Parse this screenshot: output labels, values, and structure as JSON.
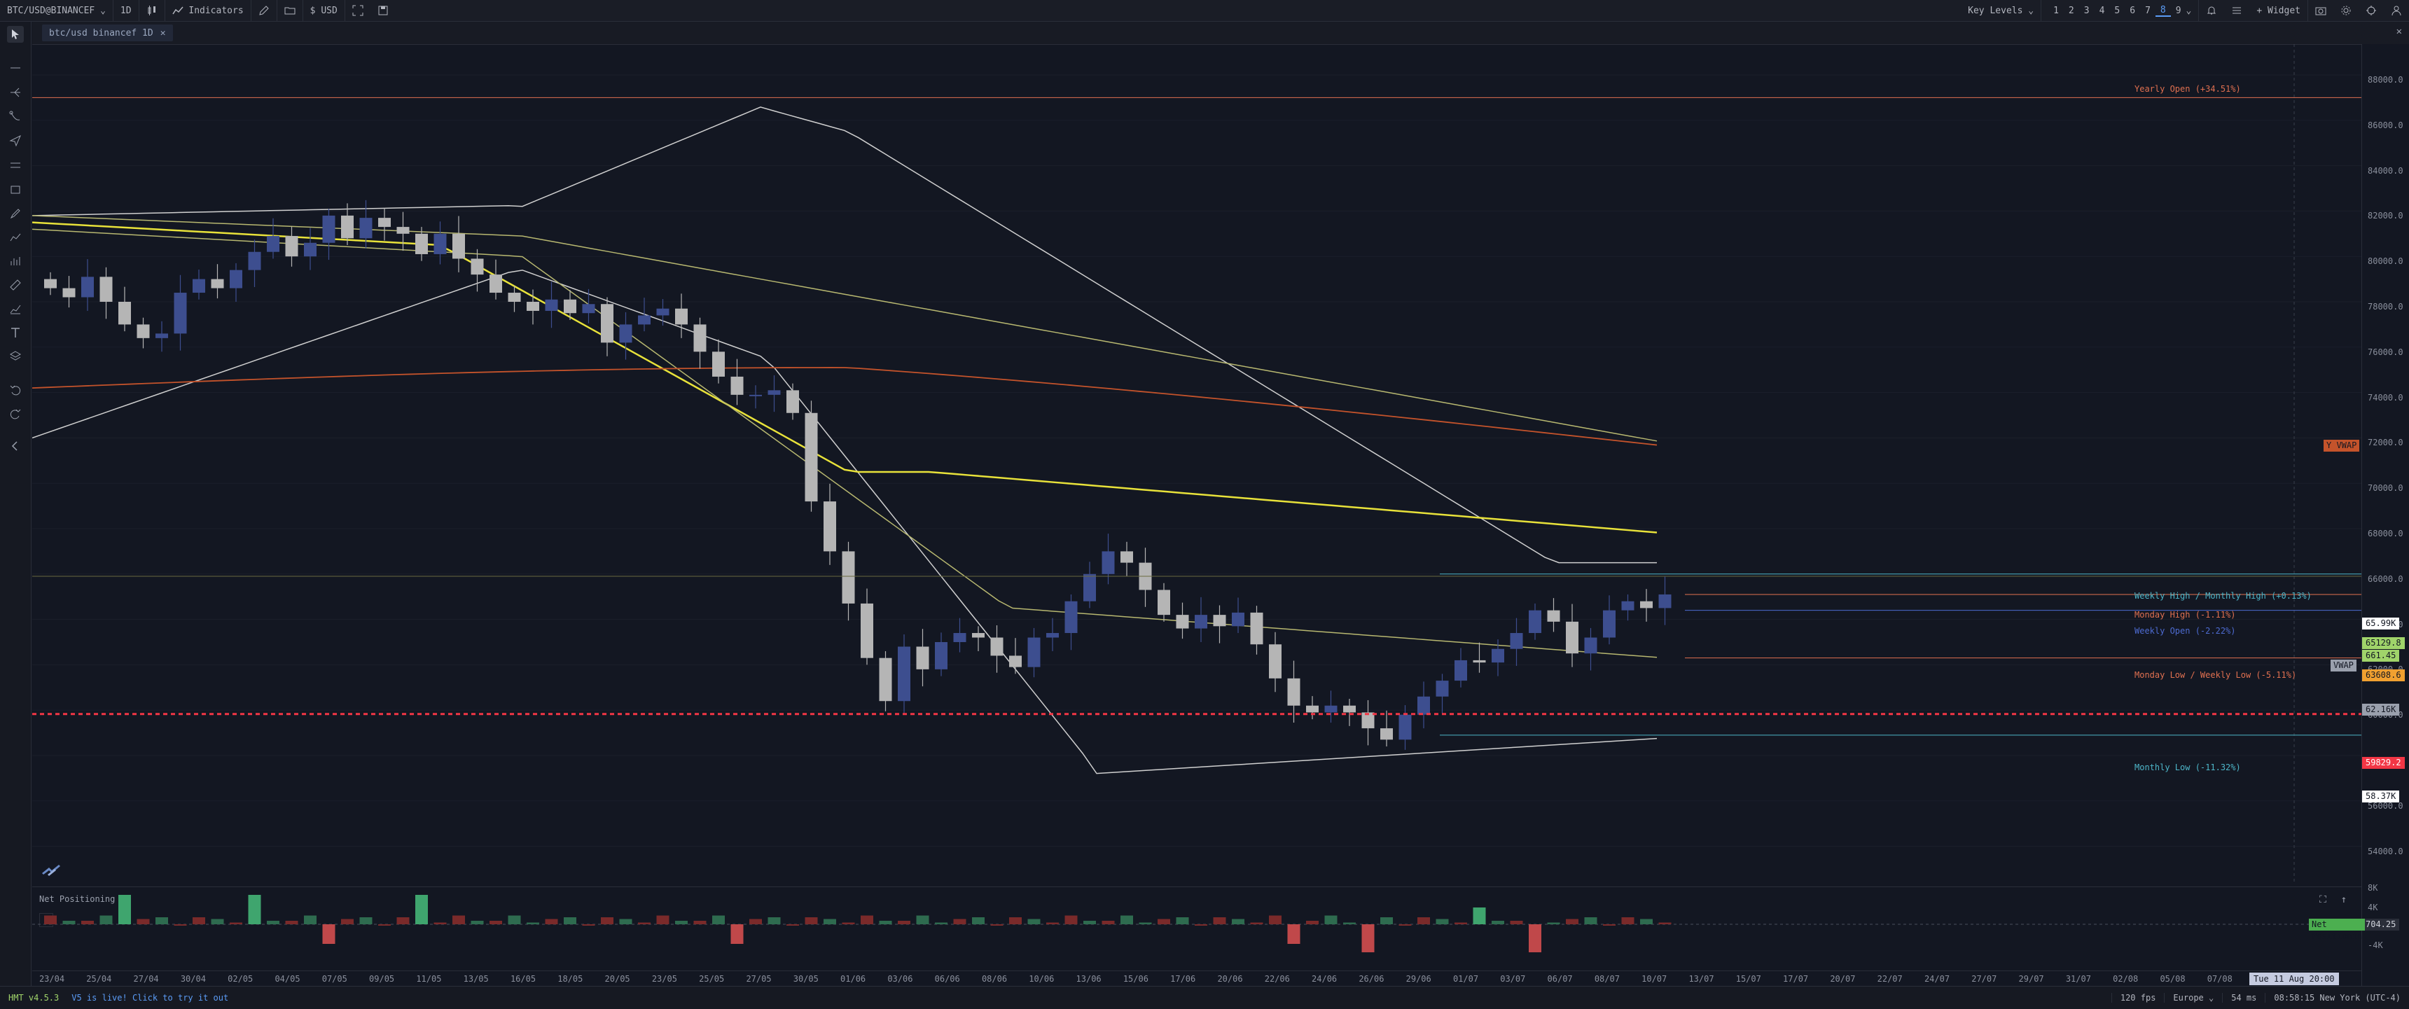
{
  "topbar": {
    "symbol": "BTC/USD@BINANCEF",
    "interval": "1D",
    "indicators_label": "Indicators",
    "currency": "USD",
    "key_levels_label": "Key Levels",
    "layout_numbers": [
      "1",
      "2",
      "3",
      "4",
      "5",
      "6",
      "7",
      "8",
      "9"
    ],
    "active_layout": "8",
    "widget_label": "Widget"
  },
  "tab": {
    "label": "btc/usd binancef 1D"
  },
  "price_axis": [
    "88000.0",
    "86000.0",
    "84000.0",
    "82000.0",
    "80000.0",
    "78000.0",
    "76000.0",
    "74000.0",
    "72000.0",
    "70000.0",
    "68000.0",
    "66000.0",
    "64000.0",
    "62000.0",
    "60000.0",
    "58000.0",
    "56000.0",
    "54000.0"
  ],
  "price_tags": {
    "yvwap": "Y VWAP",
    "high_top": "65.99K",
    "current": "65129.8",
    "countdown": "661.45",
    "orange": "63608.6",
    "vwap_label": "VWAP",
    "vwap_value": "62.16K",
    "red_line": "59829.2",
    "low_tag": "58.37K"
  },
  "levels": {
    "yearly_open": "Yearly Open (+34.51%)",
    "weekly_high": "Weekly High / Monthly High (+0.13%)",
    "monday_high": "Monday High (-1.11%)",
    "weekly_open": "Weekly Open (-2.22%)",
    "monday_low": "Monday Low / Weekly Low (-5.11%)",
    "monthly_low": "Monthly Low (-11.32%)"
  },
  "subpane": {
    "title": "Net Positioning",
    "axis": [
      "8K",
      "4K",
      "-4K"
    ],
    "tag_label": "Net Positionin",
    "tag_value": "704.25"
  },
  "time_axis": [
    "23/04",
    "25/04",
    "27/04",
    "30/04",
    "02/05",
    "04/05",
    "07/05",
    "09/05",
    "11/05",
    "13/05",
    "16/05",
    "18/05",
    "20/05",
    "23/05",
    "25/05",
    "27/05",
    "30/05",
    "01/06",
    "03/06",
    "06/06",
    "08/06",
    "10/06",
    "13/06",
    "15/06",
    "17/06",
    "20/06",
    "22/06",
    "24/06",
    "26/06",
    "29/06",
    "01/07",
    "03/07",
    "06/07",
    "08/07",
    "10/07",
    "13/07",
    "15/07",
    "17/07",
    "20/07",
    "22/07",
    "24/07",
    "27/07",
    "29/07",
    "31/07",
    "02/08",
    "05/08",
    "07/08"
  ],
  "crosshair_date": "Tue 11 Aug 20:00",
  "statusbar": {
    "version": "HMT v4.5.3",
    "announcement": "V5 is live! Click to try it out",
    "fps": "120 fps",
    "region": "Europe",
    "latency": "54 ms",
    "clock": "08:58:15 New York (UTC-4)"
  },
  "colors": {
    "bull_candle": "#3d4e8f",
    "bear_candle": "#b5b5b5",
    "red_line": "#f23645",
    "yellow_ma": "#e8e23a",
    "orange_ma": "#c4532b",
    "level_cyan": "#4db6c9",
    "level_orange": "#e07050"
  }
}
